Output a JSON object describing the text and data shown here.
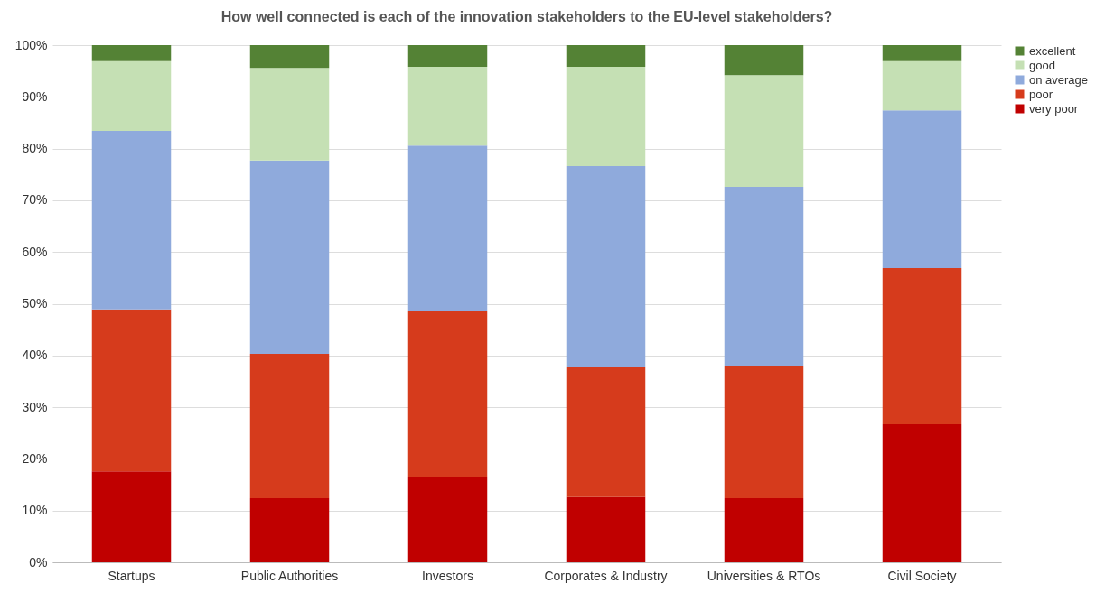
{
  "chart_data": {
    "type": "bar",
    "title": "How well connected is each of the innovation stakeholders to the EU-level stakeholders?",
    "categories": [
      "Startups",
      "Public Authorities",
      "Investors",
      "Corporates & Industry",
      "Universities & RTOs",
      "Civil Society"
    ],
    "stacked": true,
    "series": [
      {
        "name": "very poor",
        "color": "#c00000",
        "values": [
          17.6,
          12.4,
          16.4,
          12.6,
          12.4,
          26.7
        ]
      },
      {
        "name": "poor",
        "color": "#d63b1c",
        "values": [
          31.3,
          27.9,
          32.1,
          25.1,
          25.5,
          30.2
        ]
      },
      {
        "name": "on average",
        "color": "#8faadc",
        "values": [
          34.5,
          37.4,
          32.1,
          38.9,
          34.7,
          30.5
        ]
      },
      {
        "name": "good",
        "color": "#c5e0b4",
        "values": [
          13.5,
          17.9,
          15.2,
          19.2,
          21.6,
          9.5
        ]
      },
      {
        "name": "excellent",
        "color": "#548235",
        "values": [
          3.1,
          4.4,
          4.2,
          4.2,
          5.8,
          3.1
        ]
      }
    ],
    "ylim": [
      0,
      100
    ],
    "yticks": [
      {
        "value": 0,
        "label": "0%"
      },
      {
        "value": 10,
        "label": "10%"
      },
      {
        "value": 20,
        "label": "20%"
      },
      {
        "value": 30,
        "label": "30%"
      },
      {
        "value": 40,
        "label": "40%"
      },
      {
        "value": 50,
        "label": "50%"
      },
      {
        "value": 60,
        "label": "60%"
      },
      {
        "value": 70,
        "label": "70%"
      },
      {
        "value": 80,
        "label": "80%"
      },
      {
        "value": 90,
        "label": "90%"
      },
      {
        "value": 100,
        "label": "100%"
      }
    ],
    "grid": "y",
    "legend": "right"
  }
}
